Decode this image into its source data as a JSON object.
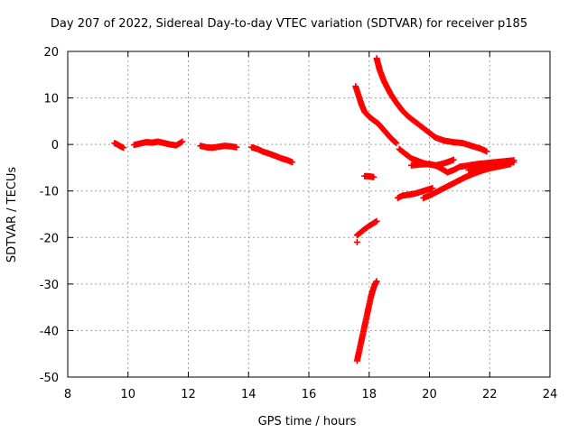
{
  "chart_data": {
    "type": "scatter",
    "title": "Day 207 of 2022, Sidereal Day-to-day VTEC variation (SDTVAR) for receiver p185",
    "xlabel": "GPS time / hours",
    "ylabel": "SDTVAR / TECUs",
    "xlim": [
      8,
      24
    ],
    "ylim": [
      -50,
      20
    ],
    "xticks": [
      8,
      10,
      12,
      14,
      16,
      18,
      20,
      22,
      24
    ],
    "yticks": [
      -50,
      -40,
      -30,
      -20,
      -10,
      0,
      10,
      20
    ],
    "grid": true,
    "marker": "+",
    "color": "#ff0000",
    "series": [
      {
        "x": [
          9.55,
          9.65,
          9.75,
          9.85
        ],
        "y": [
          0.3,
          0.0,
          -0.4,
          -0.7
        ]
      },
      {
        "x": [
          10.2,
          10.4,
          10.6,
          10.8,
          11.0,
          11.2,
          11.4,
          11.6,
          11.8
        ],
        "y": [
          -0.1,
          0.2,
          0.5,
          0.4,
          0.6,
          0.3,
          0.0,
          -0.2,
          0.6
        ]
      },
      {
        "x": [
          12.4,
          12.6,
          12.8,
          13.0,
          13.2,
          13.4,
          13.6
        ],
        "y": [
          -0.3,
          -0.6,
          -0.7,
          -0.5,
          -0.3,
          -0.4,
          -0.6
        ]
      },
      {
        "x": [
          14.1,
          14.3,
          14.5,
          14.7,
          14.9,
          15.1,
          15.3,
          15.45
        ],
        "y": [
          -0.6,
          -1.0,
          -1.6,
          -2.0,
          -2.5,
          -3.0,
          -3.4,
          -3.8
        ]
      },
      {
        "x": [
          17.55,
          17.65,
          17.75,
          17.85,
          18.0,
          18.15,
          18.3,
          18.5,
          18.7,
          18.9
        ],
        "y": [
          12.5,
          10.5,
          8.5,
          7.0,
          6.0,
          5.2,
          4.5,
          3.0,
          1.5,
          0.3
        ]
      },
      {
        "x": [
          18.25,
          18.35,
          18.5,
          18.7,
          18.9,
          19.1,
          19.3,
          19.6,
          19.9,
          20.2,
          20.5,
          20.8,
          21.1,
          21.4,
          21.7,
          21.9
        ],
        "y": [
          18.5,
          16.0,
          13.5,
          11.0,
          9.0,
          7.3,
          6.0,
          4.5,
          3.0,
          1.5,
          0.8,
          0.5,
          0.3,
          -0.3,
          -0.9,
          -1.5
        ]
      },
      {
        "x": [
          19.0,
          19.2,
          19.4,
          19.6,
          19.8,
          20.0,
          20.2,
          20.4,
          20.6,
          20.8
        ],
        "y": [
          -1.0,
          -2.0,
          -3.0,
          -3.5,
          -4.0,
          -4.3,
          -4.5,
          -4.2,
          -3.8,
          -3.3
        ]
      },
      {
        "x": [
          19.4,
          19.7,
          20.0,
          20.2,
          20.4,
          20.6,
          20.8,
          21.0,
          21.3,
          21.6,
          21.9,
          22.2,
          22.5,
          22.8
        ],
        "y": [
          -4.5,
          -4.3,
          -4.2,
          -4.5,
          -5.2,
          -6.0,
          -5.5,
          -4.8,
          -4.5,
          -4.2,
          -4.0,
          -3.8,
          -3.6,
          -3.4
        ]
      },
      {
        "x": [
          19.8,
          20.0,
          20.3,
          20.6,
          20.9,
          21.2,
          21.5,
          21.8,
          22.1,
          22.4,
          22.7
        ],
        "y": [
          -11.5,
          -11.0,
          -10.0,
          -9.0,
          -8.0,
          -7.0,
          -6.2,
          -5.5,
          -5.0,
          -4.6,
          -4.2
        ]
      },
      {
        "x": [
          21.3,
          21.6,
          21.9,
          22.2,
          22.5,
          22.8
        ],
        "y": [
          -5.5,
          -5.0,
          -4.6,
          -4.3,
          -4.0,
          -3.8
        ]
      },
      {
        "x": [
          18.95,
          19.1,
          19.3,
          19.5,
          19.7,
          19.9,
          20.1
        ],
        "y": [
          -11.5,
          -11.0,
          -10.8,
          -10.6,
          -10.2,
          -9.8,
          -9.4
        ]
      },
      {
        "x": [
          17.85,
          17.95,
          18.05,
          18.15
        ],
        "y": [
          -6.8,
          -6.8,
          -6.9,
          -7.0
        ]
      },
      {
        "x": [
          17.6,
          17.7,
          17.85,
          18.0,
          18.15,
          18.25
        ],
        "y": [
          -19.5,
          -19.0,
          -18.2,
          -17.5,
          -16.9,
          -16.5
        ]
      },
      {
        "x": [
          17.6
        ],
        "y": [
          -21.0
        ]
      },
      {
        "x": [
          17.6,
          17.65,
          17.7,
          17.75,
          17.8,
          17.85,
          17.9,
          17.95,
          18.0,
          18.05,
          18.1,
          18.15,
          18.2,
          18.25
        ],
        "y": [
          -46.5,
          -45.0,
          -43.5,
          -42.0,
          -40.5,
          -39.0,
          -37.5,
          -36.0,
          -34.5,
          -33.0,
          -31.8,
          -30.8,
          -30.0,
          -29.4
        ]
      }
    ]
  }
}
